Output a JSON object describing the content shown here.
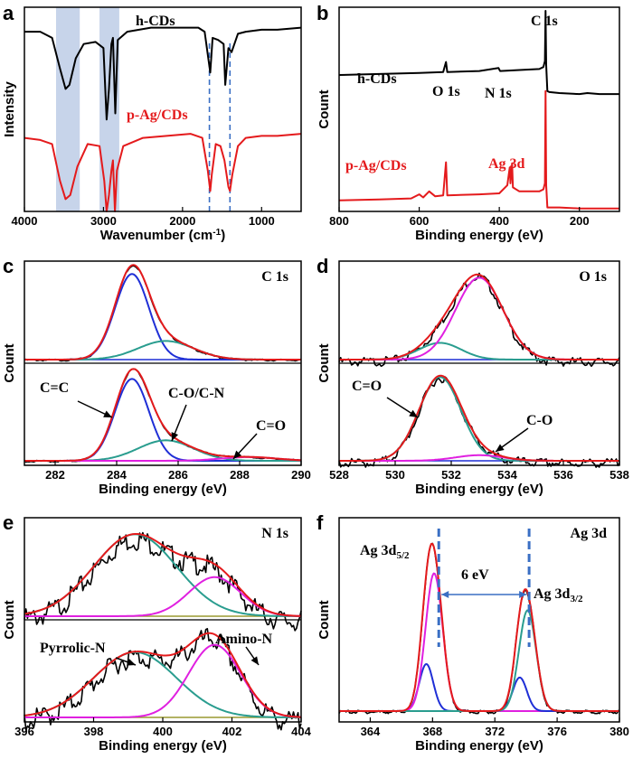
{
  "chart_data": [
    {
      "panel": "a",
      "type": "line",
      "xlabel": "Wavenumber (cm",
      "xlabel_sup": "-1",
      "xlabel_end": ")",
      "ylabel": "Intensity",
      "xlim": [
        4000,
        500
      ],
      "xreverse": true,
      "xticks": [
        4000,
        3000,
        2000,
        1000
      ],
      "shaded_bands": [
        [
          3600,
          3300
        ],
        [
          3050,
          2800
        ]
      ],
      "dashed_lines": [
        1660,
        1400
      ],
      "series": [
        {
          "name": "h-CDs",
          "color": "#000000",
          "points": [
            [
              4000,
              0.88
            ],
            [
              3800,
              0.88
            ],
            [
              3650,
              0.85
            ],
            [
              3550,
              0.7
            ],
            [
              3480,
              0.6
            ],
            [
              3430,
              0.62
            ],
            [
              3350,
              0.75
            ],
            [
              3250,
              0.82
            ],
            [
              3100,
              0.83
            ],
            [
              3000,
              0.8
            ],
            [
              2960,
              0.45
            ],
            [
              2930,
              0.6
            ],
            [
              2900,
              0.82
            ],
            [
              2880,
              0.85
            ],
            [
              2850,
              0.48
            ],
            [
              2820,
              0.84
            ],
            [
              2700,
              0.88
            ],
            [
              2400,
              0.9
            ],
            [
              2000,
              0.9
            ],
            [
              1800,
              0.9
            ],
            [
              1720,
              0.88
            ],
            [
              1650,
              0.68
            ],
            [
              1620,
              0.85
            ],
            [
              1550,
              0.84
            ],
            [
              1480,
              0.82
            ],
            [
              1460,
              0.62
            ],
            [
              1420,
              0.8
            ],
            [
              1380,
              0.78
            ],
            [
              1300,
              0.87
            ],
            [
              1200,
              0.88
            ],
            [
              1000,
              0.89
            ],
            [
              800,
              0.89
            ],
            [
              500,
              0.9
            ]
          ]
        },
        {
          "name": "p-Ag/CDs",
          "color": "#e41a1c",
          "points": [
            [
              4000,
              0.36
            ],
            [
              3800,
              0.35
            ],
            [
              3650,
              0.33
            ],
            [
              3550,
              0.15
            ],
            [
              3480,
              0.06
            ],
            [
              3420,
              0.08
            ],
            [
              3330,
              0.22
            ],
            [
              3200,
              0.33
            ],
            [
              3050,
              0.32
            ],
            [
              2990,
              0.15
            ],
            [
              2960,
              0.0
            ],
            [
              2930,
              0.08
            ],
            [
              2900,
              0.2
            ],
            [
              2880,
              0.25
            ],
            [
              2855,
              0.0
            ],
            [
              2830,
              0.2
            ],
            [
              2750,
              0.32
            ],
            [
              2500,
              0.36
            ],
            [
              2200,
              0.37
            ],
            [
              1900,
              0.38
            ],
            [
              1750,
              0.36
            ],
            [
              1680,
              0.2
            ],
            [
              1650,
              0.1
            ],
            [
              1630,
              0.18
            ],
            [
              1580,
              0.33
            ],
            [
              1520,
              0.32
            ],
            [
              1470,
              0.25
            ],
            [
              1420,
              0.12
            ],
            [
              1400,
              0.1
            ],
            [
              1370,
              0.18
            ],
            [
              1300,
              0.32
            ],
            [
              1200,
              0.36
            ],
            [
              1000,
              0.37
            ],
            [
              800,
              0.37
            ],
            [
              500,
              0.38
            ]
          ]
        }
      ]
    },
    {
      "panel": "b",
      "type": "line",
      "xlabel": "Binding energy (eV)",
      "ylabel": "Count",
      "xlim": [
        800,
        100
      ],
      "xreverse": true,
      "xticks": [
        800,
        600,
        400,
        200
      ],
      "annotations": [
        {
          "text": "C 1s",
          "color": "#000000"
        },
        {
          "text": "O 1s",
          "color": "#000000"
        },
        {
          "text": "N 1s",
          "color": "#000000"
        },
        {
          "text": "Ag 3d",
          "color": "#e41a1c"
        }
      ],
      "series": [
        {
          "name": "h-CDs",
          "color": "#000000",
          "points": [
            [
              800,
              0.68
            ],
            [
              700,
              0.685
            ],
            [
              600,
              0.69
            ],
            [
              540,
              0.695
            ],
            [
              533,
              0.745
            ],
            [
              530,
              0.695
            ],
            [
              450,
              0.7
            ],
            [
              402,
              0.715
            ],
            [
              398,
              0.7
            ],
            [
              350,
              0.705
            ],
            [
              300,
              0.71
            ],
            [
              290,
              0.72
            ],
            [
              286,
              0.75
            ],
            [
              284.5,
              1.0
            ],
            [
              283,
              0.73
            ],
            [
              280,
              0.6
            ],
            [
              275,
              0.595
            ],
            [
              250,
              0.59
            ],
            [
              200,
              0.585
            ],
            [
              180,
              0.59
            ],
            [
              150,
              0.585
            ],
            [
              100,
              0.585
            ]
          ]
        },
        {
          "name": "p-Ag/CDs",
          "color": "#e41a1c",
          "points": [
            [
              800,
              0.055
            ],
            [
              700,
              0.06
            ],
            [
              620,
              0.065
            ],
            [
              600,
              0.085
            ],
            [
              590,
              0.07
            ],
            [
              575,
              0.1
            ],
            [
              560,
              0.075
            ],
            [
              540,
              0.08
            ],
            [
              533,
              0.245
            ],
            [
              530,
              0.08
            ],
            [
              450,
              0.085
            ],
            [
              400,
              0.09
            ],
            [
              380,
              0.13
            ],
            [
              374,
              0.22
            ],
            [
              372,
              0.14
            ],
            [
              368,
              0.24
            ],
            [
              366,
              0.12
            ],
            [
              350,
              0.1
            ],
            [
              300,
              0.1
            ],
            [
              290,
              0.11
            ],
            [
              286,
              0.14
            ],
            [
              284.5,
              0.6
            ],
            [
              283,
              0.13
            ],
            [
              280,
              0.02
            ],
            [
              250,
              0.02
            ],
            [
              200,
              0.015
            ],
            [
              150,
              0.015
            ],
            [
              100,
              0.015
            ]
          ]
        }
      ]
    },
    {
      "panel": "c",
      "type": "line",
      "title": "C 1s",
      "xlabel": "Binding energy (eV)",
      "ylabel": "Count",
      "xlim": [
        281,
        290
      ],
      "xticks": [
        282,
        284,
        286,
        288,
        290
      ],
      "annotations": [
        {
          "text": "C=C",
          "color": "#000000"
        },
        {
          "text": "C-O/C-N",
          "color": "#000000"
        },
        {
          "text": "C=O",
          "color": "#000000"
        }
      ],
      "components": [
        {
          "name": "C=C",
          "color": "#1f2fd6",
          "center": 284.5,
          "sigma": 0.55,
          "amp_top": 0.92,
          "amp_bottom": 0.88
        },
        {
          "name": "C-O/C-N",
          "color": "#2a9d8f",
          "center": 285.6,
          "sigma": 0.9,
          "amp_top": 0.2,
          "amp_bottom": 0.22
        },
        {
          "name": "C=O",
          "color": "#e020e0",
          "center": 288.3,
          "sigma": 0.9,
          "amp_top": 0.0,
          "amp_bottom": 0.04
        }
      ]
    },
    {
      "panel": "d",
      "type": "line",
      "title": "O 1s",
      "xlabel": "Binding energy (eV)",
      "ylabel": "Count",
      "xlim": [
        528,
        538
      ],
      "xticks": [
        528,
        530,
        532,
        534,
        536,
        538
      ],
      "annotations": [
        {
          "text": "C=O",
          "color": "#000000"
        },
        {
          "text": "C-O",
          "color": "#000000"
        }
      ],
      "components": [
        {
          "name": "C=O",
          "color": "#2a9d8f",
          "center": 531.6,
          "sigma": 0.75,
          "amp_top": 0.18,
          "amp_bottom": 0.9
        },
        {
          "name": "C-O",
          "color": "#e020e0",
          "center": 533.0,
          "sigma": 0.85,
          "amp_top": 0.88,
          "amp_bottom": 0.06
        }
      ]
    },
    {
      "panel": "e",
      "type": "line",
      "title": "N 1s",
      "xlabel": "Binding energy (eV)",
      "ylabel": "Count",
      "xlim": [
        396,
        404
      ],
      "xticks": [
        396,
        398,
        400,
        402,
        404
      ],
      "annotations": [
        {
          "text": "Pyrrolic-N",
          "color": "#000000"
        },
        {
          "text": "Amino-N",
          "color": "#000000"
        }
      ],
      "components": [
        {
          "name": "Pyrrolic-N",
          "color": "#2a9d8f",
          "center": 399.2,
          "sigma": 1.2,
          "amp_top": 0.88,
          "amp_bottom": 0.7
        },
        {
          "name": "Amino-N",
          "color": "#e020e0",
          "center": 401.5,
          "sigma": 0.75,
          "amp_top": 0.42,
          "amp_bottom": 0.78
        }
      ]
    },
    {
      "panel": "f",
      "type": "line",
      "title": "Ag 3d",
      "xlabel": "Binding energy (eV)",
      "ylabel": "Count",
      "xlim": [
        362,
        380
      ],
      "xticks": [
        364,
        368,
        372,
        376,
        380
      ],
      "annotations": [
        {
          "text": "Ag 3d",
          "sub": "5/2",
          "color": "#000000"
        },
        {
          "text": "6 eV",
          "color": "#000000"
        },
        {
          "text": "Ag 3d",
          "sub": "3/2",
          "color": "#000000"
        }
      ],
      "components": [
        {
          "name": "Ag 3d5/2 a",
          "color": "#1f2fd6",
          "center": 367.6,
          "sigma": 0.45,
          "amp": 0.28
        },
        {
          "name": "Ag 3d5/2 b",
          "color": "#e020e0",
          "center": 368.1,
          "sigma": 0.55,
          "amp": 0.82
        },
        {
          "name": "Ag 3d3/2 a",
          "color": "#1f2fd6",
          "center": 373.6,
          "sigma": 0.45,
          "amp": 0.2
        },
        {
          "name": "Ag 3d3/2 b",
          "color": "#2a9d8f",
          "center": 374.1,
          "sigma": 0.55,
          "amp": 0.6
        }
      ]
    }
  ],
  "panel_labels": [
    "a",
    "b",
    "c",
    "d",
    "e",
    "f"
  ],
  "legend_texts": {
    "h_cds": "h-CDs",
    "p_ag_cds": "p-Ag/CDs"
  },
  "colors": {
    "red": "#e41a1c",
    "blue": "#1f2fd6",
    "teal": "#2a9d8f",
    "magenta": "#e020e0",
    "shade": "#c7d4ea",
    "dash": "#3a6fc4",
    "olive": "#9a9a30"
  }
}
